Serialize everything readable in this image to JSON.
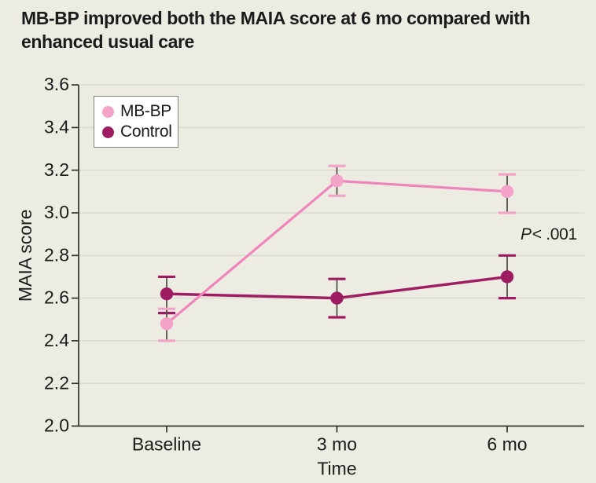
{
  "title": "MB-BP improved both the MAIA score at 6 mo compared with enhanced usual care",
  "annotation": {
    "p_prefix": "P",
    "p_value": "< .001"
  },
  "chart_data": {
    "type": "line",
    "title": "MB-BP improved both the MAIA score at 6 mo compared with enhanced usual care",
    "categories": [
      "Baseline",
      "3 mo",
      "6 mo"
    ],
    "series": [
      {
        "name": "MB-BP",
        "marker_color": "#f3a3c8",
        "line_color": "#ef86bb",
        "values": [
          2.48,
          3.15,
          3.1
        ],
        "ci_low": [
          2.4,
          3.08,
          3.0
        ],
        "ci_high": [
          2.55,
          3.22,
          3.18
        ]
      },
      {
        "name": "Control",
        "marker_color": "#9c1b61",
        "line_color": "#9e1d63",
        "values": [
          2.62,
          2.6,
          2.7
        ],
        "ci_low": [
          2.53,
          2.51,
          2.6
        ],
        "ci_high": [
          2.7,
          2.69,
          2.8
        ]
      }
    ],
    "xlabel": "Time",
    "ylabel": "MAIA score",
    "ylim": [
      2.0,
      3.6
    ],
    "ytick_step": 0.2,
    "grid": true,
    "error_bars": true,
    "legend_position": "top-left",
    "p_annotation": "P < .001"
  },
  "colors": {
    "background": "#edece2",
    "grid": "#dcdbd2",
    "axis": "#33312c",
    "text": "#1b1b1b",
    "error_stem": "#56524c",
    "legend_border": "#82807a",
    "legend_bg": "#ffffff"
  }
}
